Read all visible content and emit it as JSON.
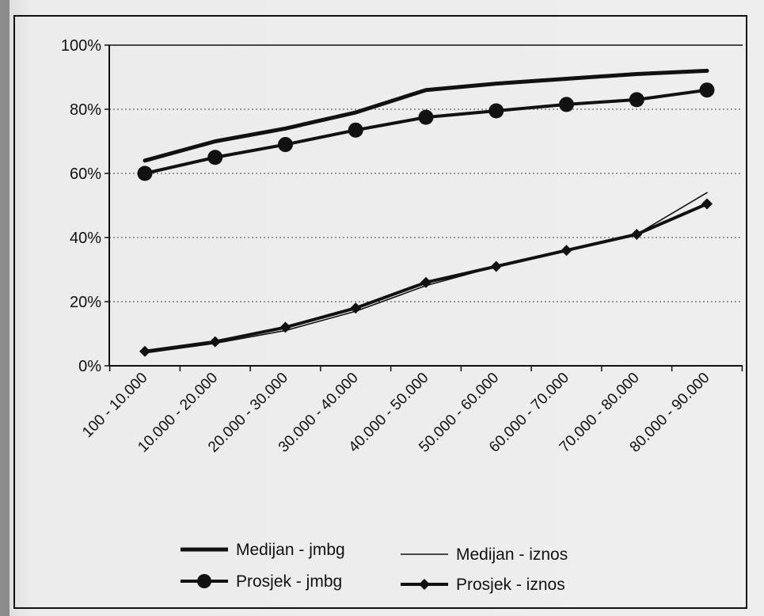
{
  "chart_data": {
    "type": "line",
    "title": "",
    "xlabel": "",
    "ylabel": "",
    "ylim": [
      0,
      100
    ],
    "y_ticks": [
      "0%",
      "20%",
      "40%",
      "60%",
      "80%",
      "100%"
    ],
    "grid": "horizontal dotted",
    "legend_position": "bottom",
    "categories": [
      "100 - 10.000",
      "10.000 - 20.000",
      "20.000 - 30.000",
      "30.000 - 40.000",
      "40.000 - 50.000",
      "50.000 - 60.000",
      "60.000 - 70.000",
      "70.000 - 80.000",
      "80.000 - 90.000"
    ],
    "series": [
      {
        "name": "Medijan - jmbg",
        "style": "thick",
        "values": [
          64,
          70,
          74,
          79,
          86,
          88,
          89.5,
          91,
          92
        ]
      },
      {
        "name": "Prosjek - jmbg",
        "style": "circle",
        "values": [
          60,
          65,
          69,
          73.5,
          77.5,
          79.5,
          81.5,
          83,
          86
        ]
      },
      {
        "name": "Medijan - iznos",
        "style": "thin",
        "values": [
          4,
          7,
          11,
          17,
          25,
          31,
          36,
          41,
          54
        ]
      },
      {
        "name": "Prosjek - iznos",
        "style": "diamond",
        "values": [
          4.5,
          7.5,
          12,
          18,
          26,
          31,
          36,
          41,
          50.5
        ]
      }
    ]
  }
}
